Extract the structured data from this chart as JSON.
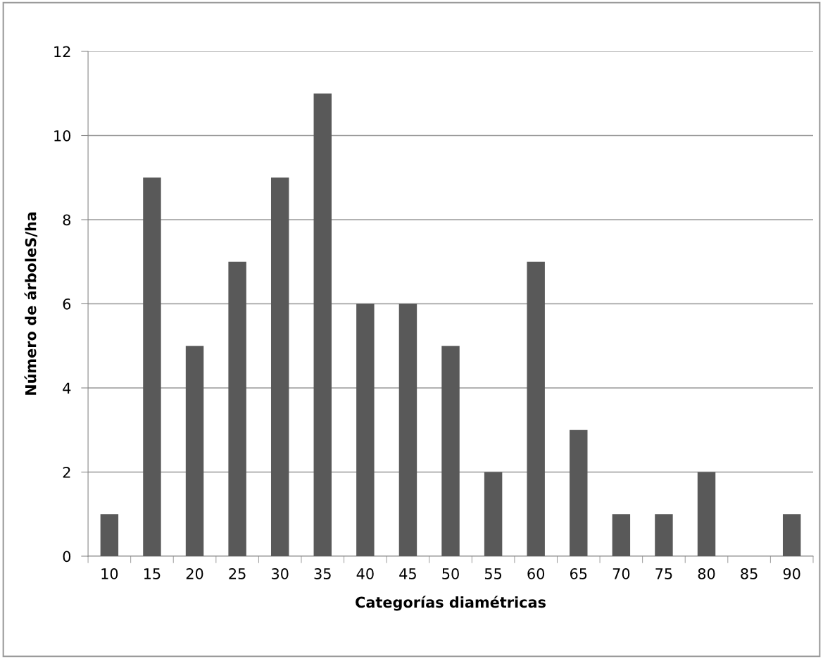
{
  "chart_data": {
    "type": "bar",
    "xlabel": "Categorías diamétricas",
    "ylabel": "Número de árboleS/ha",
    "categories": [
      "10",
      "15",
      "20",
      "25",
      "30",
      "35",
      "40",
      "45",
      "50",
      "55",
      "60",
      "65",
      "70",
      "75",
      "80",
      "85",
      "90"
    ],
    "values": [
      1,
      9,
      5,
      7,
      9,
      11,
      6,
      6,
      5,
      2,
      7,
      3,
      1,
      1,
      2,
      0,
      1
    ],
    "color": "#595959",
    "ylim": [
      0,
      12
    ],
    "yticks": [
      0,
      2,
      4,
      6,
      8,
      10,
      12
    ],
    "grid": "y",
    "legend": false
  }
}
